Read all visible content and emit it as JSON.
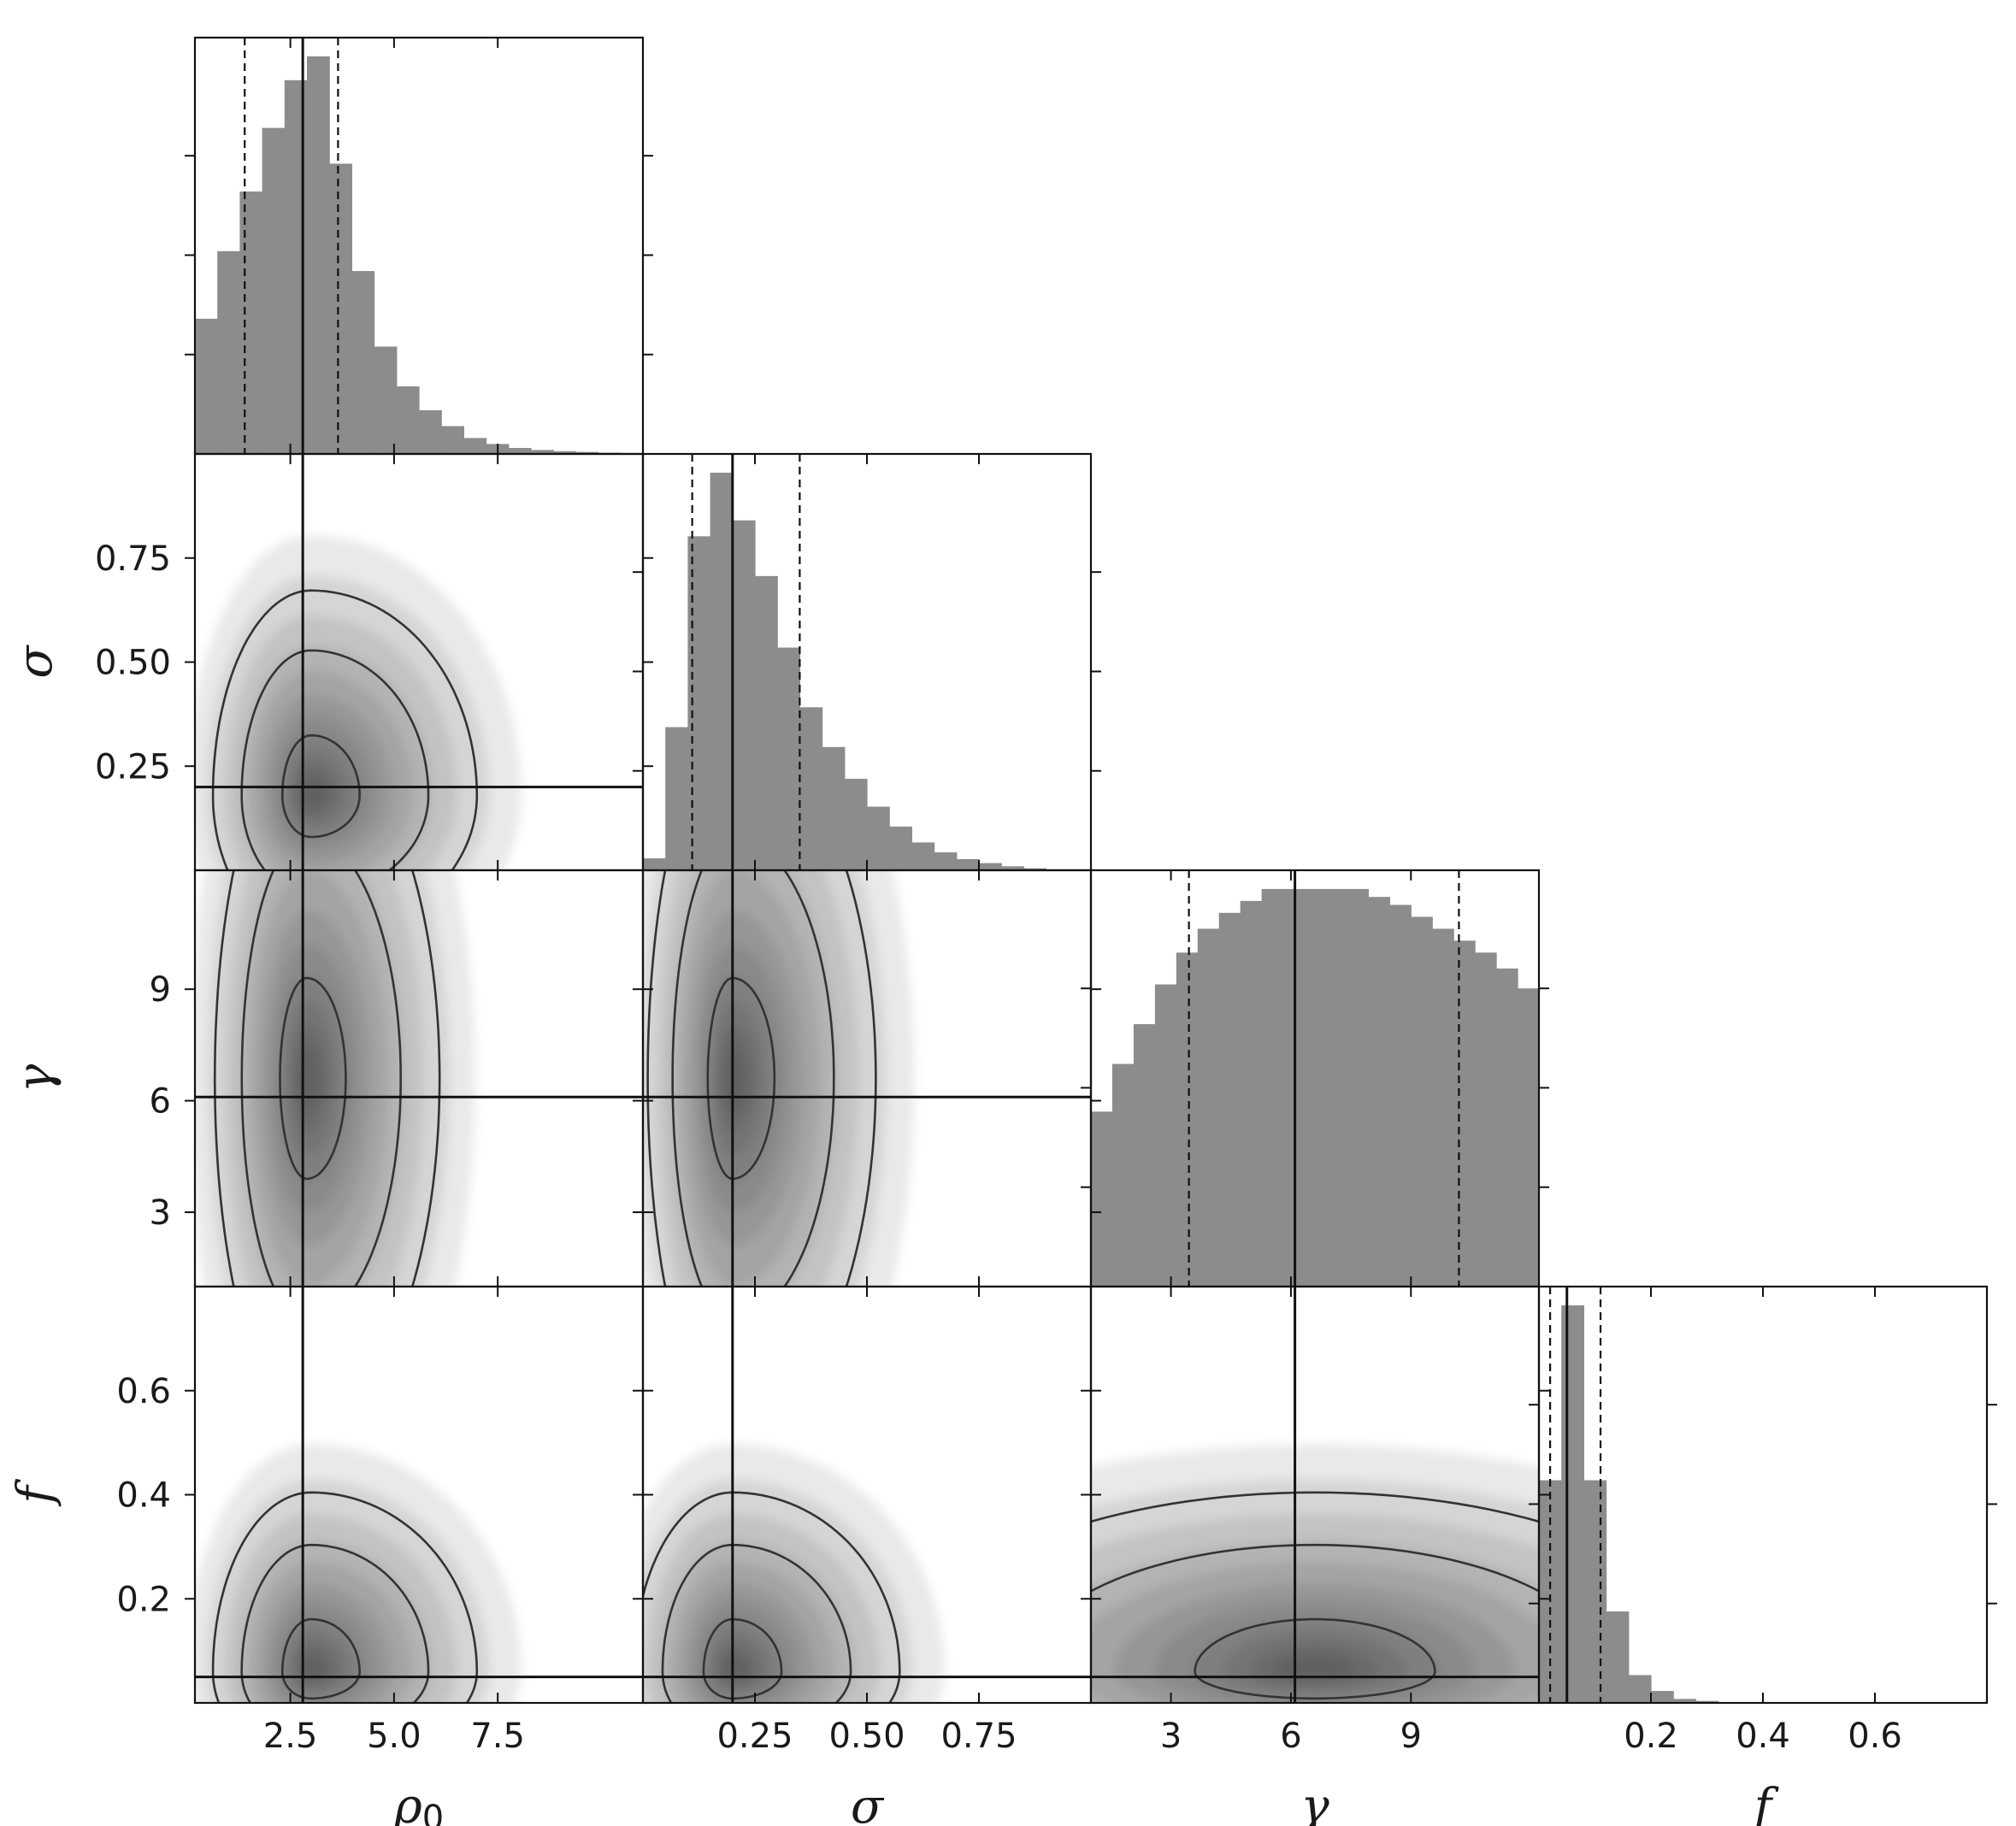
{
  "chart_data": {
    "type": "corner",
    "parameters": [
      {
        "key": "rho0",
        "label": "ρ",
        "label_sub": "0",
        "range": [
          0.2,
          11.0
        ],
        "ticks": [
          2.5,
          5.0,
          7.5
        ],
        "tick_labels": [
          "2.5",
          "5.0",
          "7.5"
        ],
        "truth": 2.8,
        "quantiles": [
          1.4,
          3.65
        ]
      },
      {
        "key": "sigma",
        "label": "σ",
        "label_sub": "",
        "range": [
          0.0,
          1.0
        ],
        "ticks": [
          0.25,
          0.5,
          0.75
        ],
        "tick_labels": [
          "0.25",
          "0.50",
          "0.75"
        ],
        "truth": 0.2,
        "quantiles": [
          0.11,
          0.35
        ]
      },
      {
        "key": "gamma",
        "label": "γ",
        "label_sub": "",
        "range": [
          1.0,
          12.2
        ],
        "ticks": [
          3,
          6,
          9
        ],
        "tick_labels": [
          "3",
          "6",
          "9"
        ],
        "truth": 6.1,
        "quantiles": [
          3.45,
          10.2
        ]
      },
      {
        "key": "f",
        "label": "f",
        "label_sub": "",
        "range": [
          0.0,
          0.8
        ],
        "ticks": [
          0.2,
          0.4,
          0.6
        ],
        "tick_labels": [
          "0.2",
          "0.4",
          "0.6"
        ],
        "truth": 0.05,
        "quantiles": [
          0.02,
          0.11
        ]
      }
    ],
    "histograms": {
      "rho0": [
        0.34,
        0.51,
        0.66,
        0.82,
        0.94,
        1.0,
        0.73,
        0.46,
        0.27,
        0.17,
        0.11,
        0.07,
        0.04,
        0.025,
        0.015,
        0.01,
        0.007,
        0.005,
        0.003,
        0.002
      ],
      "sigma": [
        0.03,
        0.36,
        0.84,
        1.0,
        0.88,
        0.74,
        0.56,
        0.41,
        0.31,
        0.23,
        0.16,
        0.11,
        0.07,
        0.045,
        0.028,
        0.018,
        0.01,
        0.005,
        0.002,
        0.001
      ],
      "gamma": [
        0.44,
        0.56,
        0.66,
        0.76,
        0.84,
        0.9,
        0.94,
        0.97,
        1.0,
        1.02,
        1.03,
        1.02,
        1.0,
        0.98,
        0.96,
        0.93,
        0.9,
        0.87,
        0.84,
        0.8,
        0.75
      ],
      "f": [
        0.56,
        1.0,
        0.56,
        0.23,
        0.07,
        0.03,
        0.01,
        0.005,
        0.002,
        0.001,
        0,
        0,
        0,
        0,
        0,
        0,
        0,
        0,
        0,
        0
      ]
    },
    "panels_2d": [
      {
        "row": "sigma",
        "col": "rho0",
        "mean": [
          3.0,
          0.18
        ],
        "sd": [
          1.5,
          0.2
        ],
        "skew": [
          1.3,
          1.2
        ]
      },
      {
        "row": "gamma",
        "col": "rho0",
        "mean": [
          2.9,
          6.6
        ],
        "sd": [
          1.3,
          4.5
        ],
        "skew": [
          1.2,
          1.0
        ]
      },
      {
        "row": "gamma",
        "col": "sigma",
        "mean": [
          0.2,
          6.6
        ],
        "sd": [
          0.12,
          4.5
        ],
        "skew": [
          1.3,
          1.0
        ]
      },
      {
        "row": "f",
        "col": "rho0",
        "mean": [
          3.0,
          0.06
        ],
        "sd": [
          1.5,
          0.12
        ],
        "skew": [
          1.3,
          1.4
        ]
      },
      {
        "row": "f",
        "col": "sigma",
        "mean": [
          0.2,
          0.06
        ],
        "sd": [
          0.14,
          0.12
        ],
        "skew": [
          1.3,
          1.4
        ]
      },
      {
        "row": "f",
        "col": "gamma",
        "mean": [
          6.6,
          0.06
        ],
        "sd": [
          5.0,
          0.12
        ],
        "skew": [
          1.0,
          1.4
        ]
      }
    ]
  }
}
